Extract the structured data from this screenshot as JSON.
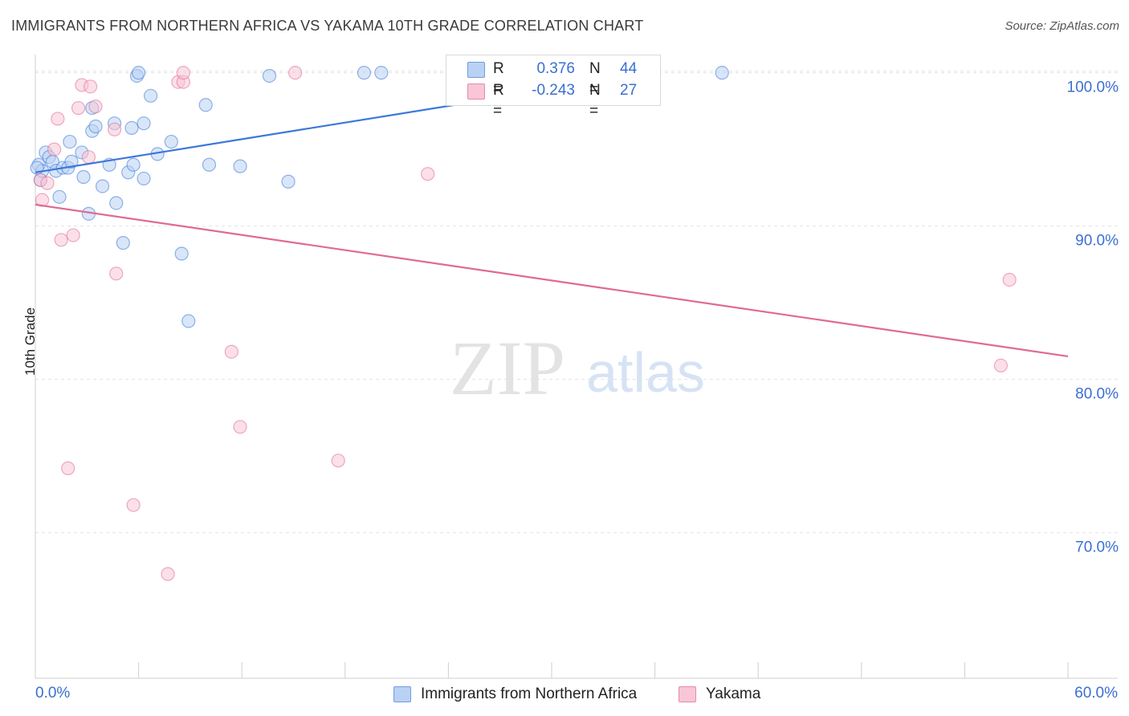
{
  "title": "IMMIGRANTS FROM NORTHERN AFRICA VS YAKAMA 10TH GRADE CORRELATION CHART",
  "source": "Source: ZipAtlas.com",
  "watermark": {
    "zip": "ZIP",
    "atlas": "atlas"
  },
  "stats": [
    {
      "r_label": "R =",
      "r_value": "0.376",
      "n_label": "N =",
      "n_value": "44",
      "color": "#6f9de0",
      "fill": "#b9d1f3"
    },
    {
      "r_label": "R =",
      "r_value": "-0.243",
      "n_label": "N =",
      "n_value": "27",
      "color": "#e88aa8",
      "fill": "#f8c6d6"
    }
  ],
  "legend": [
    {
      "label": "Immigrants from Northern Africa",
      "color": "#6f9de0",
      "fill": "#b9d1f3"
    },
    {
      "label": "Yakama",
      "color": "#e88aa8",
      "fill": "#f8c6d6"
    }
  ],
  "chart_data": {
    "type": "scatter",
    "title": "IMMIGRANTS FROM NORTHERN AFRICA VS YAKAMA 10TH GRADE CORRELATION CHART",
    "xlabel": "",
    "ylabel": "10th Grade",
    "xlim": [
      0,
      60
    ],
    "ylim": [
      60.5,
      101.5
    ],
    "x_tick_labels": [
      "0.0%",
      "60.0%"
    ],
    "y_ticks": [
      70,
      80,
      90,
      100
    ],
    "y_tick_labels": [
      "70.0%",
      "80.0%",
      "90.0%",
      "100.0%"
    ],
    "grid": true,
    "legend_position": "bottom",
    "series": [
      {
        "name": "Immigrants from Northern Africa",
        "color": "#3b78d8",
        "fill": "#b9d1f3",
        "trend": {
          "x0": 0,
          "y0": 93.5,
          "x1": 36,
          "y1": 100.0
        },
        "points": [
          [
            0.2,
            94.0
          ],
          [
            0.3,
            93.0
          ],
          [
            0.4,
            93.6
          ],
          [
            0.6,
            94.8
          ],
          [
            0.8,
            94.5
          ],
          [
            1.0,
            94.2
          ],
          [
            1.2,
            93.6
          ],
          [
            1.4,
            91.9
          ],
          [
            1.6,
            93.8
          ],
          [
            1.9,
            93.8
          ],
          [
            2.0,
            95.5
          ],
          [
            2.1,
            94.2
          ],
          [
            2.7,
            94.8
          ],
          [
            2.8,
            93.2
          ],
          [
            3.1,
            90.8
          ],
          [
            3.3,
            96.2
          ],
          [
            3.3,
            97.7
          ],
          [
            3.5,
            96.5
          ],
          [
            3.9,
            92.6
          ],
          [
            4.3,
            94.0
          ],
          [
            4.6,
            96.7
          ],
          [
            4.7,
            91.5
          ],
          [
            5.1,
            88.9
          ],
          [
            5.4,
            93.5
          ],
          [
            5.6,
            96.4
          ],
          [
            5.7,
            94.0
          ],
          [
            5.9,
            99.8
          ],
          [
            6.0,
            100.0
          ],
          [
            6.3,
            93.1
          ],
          [
            6.3,
            96.7
          ],
          [
            6.7,
            98.5
          ],
          [
            7.1,
            94.7
          ],
          [
            7.9,
            95.5
          ],
          [
            8.5,
            88.2
          ],
          [
            8.9,
            83.8
          ],
          [
            9.9,
            97.9
          ],
          [
            10.1,
            94.0
          ],
          [
            11.9,
            93.9
          ],
          [
            13.6,
            99.8
          ],
          [
            14.7,
            92.9
          ],
          [
            19.1,
            100.0
          ],
          [
            20.1,
            100.0
          ],
          [
            39.9,
            100.0
          ],
          [
            0.1,
            93.8
          ]
        ]
      },
      {
        "name": "Yakama",
        "color": "#e06a94",
        "fill": "#f8c6d6",
        "trend": {
          "x0": 0,
          "y0": 91.4,
          "x1": 60,
          "y1": 81.5
        },
        "points": [
          [
            0.3,
            93.0
          ],
          [
            0.4,
            91.7
          ],
          [
            0.7,
            92.8
          ],
          [
            1.1,
            95.0
          ],
          [
            1.3,
            97.0
          ],
          [
            1.5,
            89.1
          ],
          [
            1.9,
            74.2
          ],
          [
            2.2,
            89.4
          ],
          [
            2.5,
            97.7
          ],
          [
            2.7,
            99.2
          ],
          [
            3.1,
            94.5
          ],
          [
            3.2,
            99.1
          ],
          [
            3.5,
            97.8
          ],
          [
            4.6,
            96.3
          ],
          [
            4.7,
            86.9
          ],
          [
            5.7,
            71.8
          ],
          [
            7.7,
            67.3
          ],
          [
            8.3,
            99.4
          ],
          [
            8.6,
            99.4
          ],
          [
            8.6,
            100.0
          ],
          [
            11.4,
            81.8
          ],
          [
            11.9,
            76.9
          ],
          [
            15.1,
            100.0
          ],
          [
            17.6,
            74.7
          ],
          [
            22.8,
            93.4
          ],
          [
            56.1,
            80.9
          ],
          [
            56.6,
            86.5
          ]
        ]
      }
    ]
  }
}
